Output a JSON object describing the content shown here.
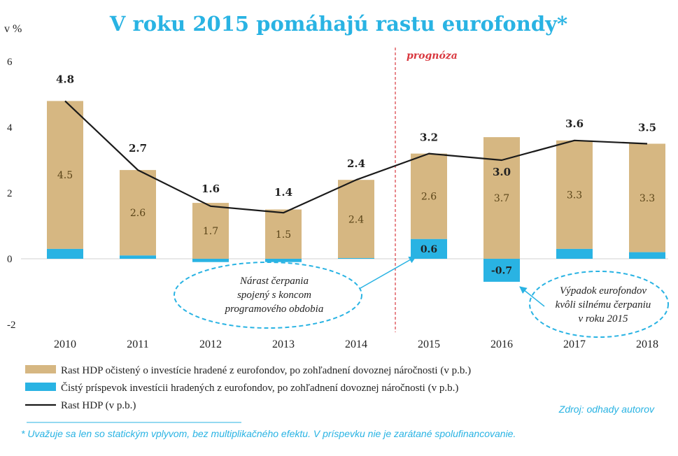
{
  "chart_data": {
    "type": "bar",
    "title": "V roku 2015 pomáhajú rastu eurofondy*",
    "ylabel": "v %",
    "ylim": [
      -2,
      6
    ],
    "yticks": [
      -2,
      0,
      2,
      4,
      6
    ],
    "categories": [
      "2010",
      "2011",
      "2012",
      "2013",
      "2014",
      "2015",
      "2016",
      "2017",
      "2018"
    ],
    "series": [
      {
        "name": "Rast HDP očistený o investície hradené z eurofondov, po zohľadnení dovoznej náročnosti (v p.b.)",
        "kind": "bar",
        "color": "#d6b782",
        "values": [
          4.5,
          2.6,
          1.7,
          1.5,
          2.4,
          2.6,
          3.7,
          3.3,
          3.3
        ],
        "labels": [
          "4.5",
          "2.6",
          "1.7",
          "1.5",
          "2.4",
          "2.6",
          "3.7",
          "3.3",
          "3.3"
        ]
      },
      {
        "name": "Čistý príspevok investícii hradených z eurofondov, po zohľadnení dovoznej náročnosti (v p.b.)",
        "kind": "bar",
        "color": "#29b3e3",
        "values": [
          0.3,
          0.1,
          -0.1,
          -0.1,
          0.0,
          0.6,
          -0.7,
          0.3,
          0.2
        ],
        "labels": [
          "",
          "",
          "",
          "",
          "",
          "0.6",
          "-0.7",
          "",
          ""
        ]
      },
      {
        "name": "Rast HDP (v p.b.)",
        "kind": "line",
        "color": "#1a1a1a",
        "values": [
          4.8,
          2.7,
          1.6,
          1.4,
          2.4,
          3.2,
          3.0,
          3.6,
          3.5
        ],
        "labels": [
          "4.8",
          "2.7",
          "1.6",
          "1.4",
          "2.4",
          "3.2",
          "3.0",
          "3.6",
          "3.5"
        ]
      }
    ],
    "forecast": {
      "label": "prognóza",
      "after_category": "2014"
    },
    "annotations": [
      {
        "lines": [
          "Nárast čerpania",
          "spojený s koncom",
          "programového obdobia"
        ],
        "points_to": "2015"
      },
      {
        "lines": [
          "Výpadok eurofondov",
          "kvôli silnému čerpaniu",
          "v roku 2015"
        ],
        "points_to": "2016"
      }
    ],
    "source": "Zdroj: odhady autorov",
    "footnote": "* Uvažuje sa len so statickým vplyvom, bez multiplikačného efektu. V príspevku nie je zarátané spolufinancovanie."
  }
}
